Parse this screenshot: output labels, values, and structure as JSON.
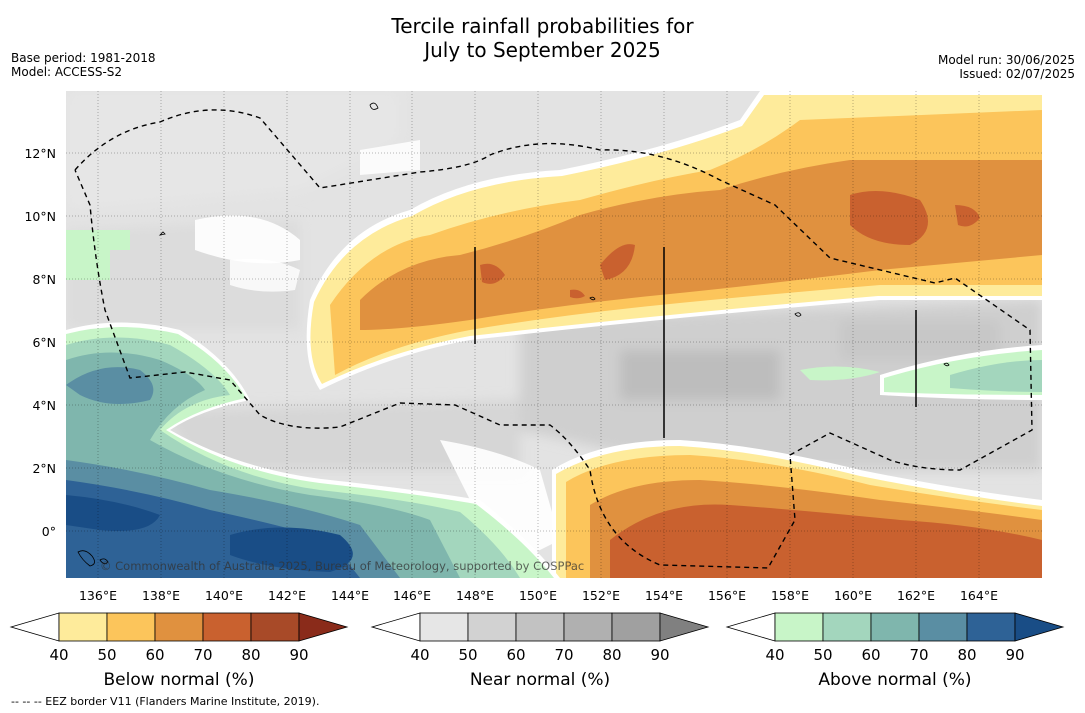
{
  "title": {
    "line1": "Tercile rainfall probabilities for",
    "line2": "July to September 2025"
  },
  "left_meta": {
    "base_period": "Base period: 1981-2018",
    "model": "Model: ACCESS-S2"
  },
  "right_meta": {
    "model_run": "Model run: 30/06/2025",
    "issued": "Issued: 02/07/2025"
  },
  "map": {
    "lon_labels": [
      "136°E",
      "138°E",
      "140°E",
      "142°E",
      "144°E",
      "146°E",
      "148°E",
      "150°E",
      "152°E",
      "154°E",
      "156°E",
      "158°E",
      "160°E",
      "162°E",
      "164°E"
    ],
    "lat_labels": [
      "12°N",
      "10°N",
      "8°N",
      "6°N",
      "4°N",
      "2°N",
      "0°"
    ],
    "copyright": "© Commonwealth of Australia 2025, Bureau of Meteorology, supported by COSPPac"
  },
  "legends": [
    {
      "label": "Below normal (%)",
      "ticks": [
        "40",
        "50",
        "60",
        "70",
        "80",
        "90"
      ],
      "colors": [
        "#ffffff",
        "#feeb9b",
        "#fcc55b",
        "#e0913f",
        "#c9612f",
        "#a84a28",
        "#8a2b1a"
      ]
    },
    {
      "label": "Near normal (%)",
      "ticks": [
        "40",
        "50",
        "60",
        "70",
        "80",
        "90"
      ],
      "colors": [
        "#ffffff",
        "#e6e6e6",
        "#d2d2d2",
        "#c2c2c2",
        "#b0b0b0",
        "#a0a0a0",
        "#808080"
      ]
    },
    {
      "label": "Above normal (%)",
      "ticks": [
        "40",
        "50",
        "60",
        "70",
        "80",
        "90"
      ],
      "colors": [
        "#ffffff",
        "#c8f5c8",
        "#a3d6bd",
        "#7fb6ad",
        "#5a8ea3",
        "#2e6296",
        "#194d86"
      ]
    }
  ],
  "footnote": "--  --  -- EEZ border V11 (Flanders Marine Institute, 2019)."
}
